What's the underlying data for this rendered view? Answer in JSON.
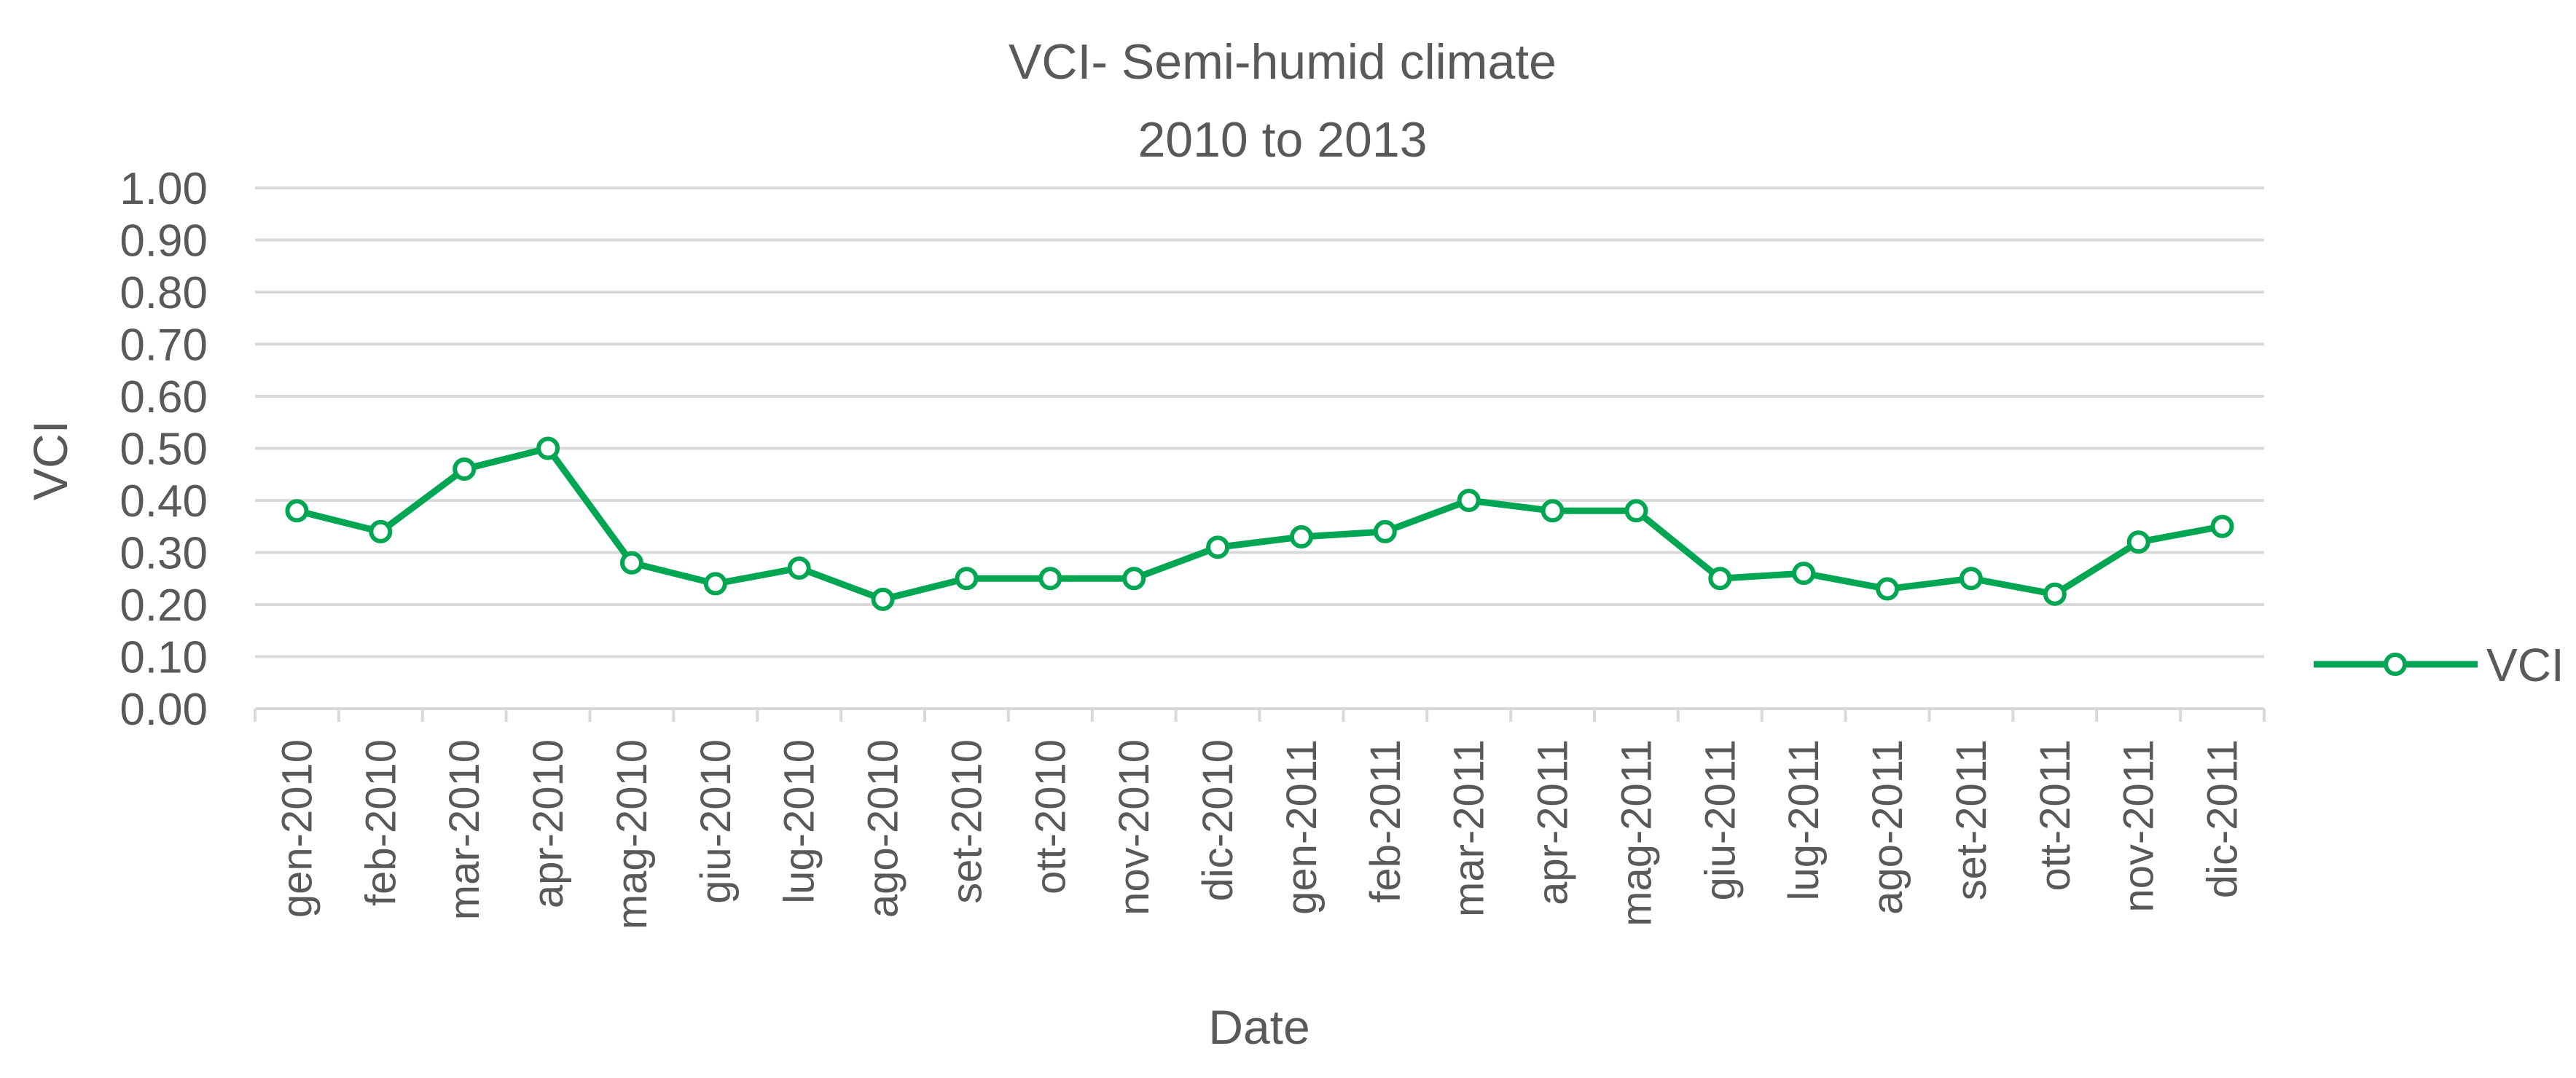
{
  "chart_data": {
    "type": "line",
    "title": "VCI- Semi-humid climate",
    "subtitle": "2010 to 2013",
    "xlabel": "Date",
    "ylabel": "VCI",
    "ylim": [
      0,
      1
    ],
    "y_ticks": [
      "0.00",
      "0.10",
      "0.20",
      "0.30",
      "0.40",
      "0.50",
      "0.60",
      "0.70",
      "0.80",
      "0.90",
      "1.00"
    ],
    "grid": true,
    "legend_position": "right",
    "categories": [
      "gen-2010",
      "feb-2010",
      "mar-2010",
      "apr-2010",
      "mag-2010",
      "giu-2010",
      "lug-2010",
      "ago-2010",
      "set-2010",
      "ott-2010",
      "nov-2010",
      "dic-2010",
      "gen-2011",
      "feb-2011",
      "mar-2011",
      "apr-2011",
      "mag-2011",
      "giu-2011",
      "lug-2011",
      "ago-2011",
      "set-2011",
      "ott-2011",
      "nov-2011",
      "dic-2011"
    ],
    "series": [
      {
        "name": "VCI",
        "color": "#00a651",
        "values": [
          0.38,
          0.34,
          0.46,
          0.5,
          0.28,
          0.24,
          0.27,
          0.21,
          0.25,
          0.25,
          0.25,
          0.31,
          0.33,
          0.34,
          0.4,
          0.38,
          0.38,
          0.25,
          0.26,
          0.23,
          0.25,
          0.22,
          0.32,
          0.35
        ]
      }
    ]
  }
}
